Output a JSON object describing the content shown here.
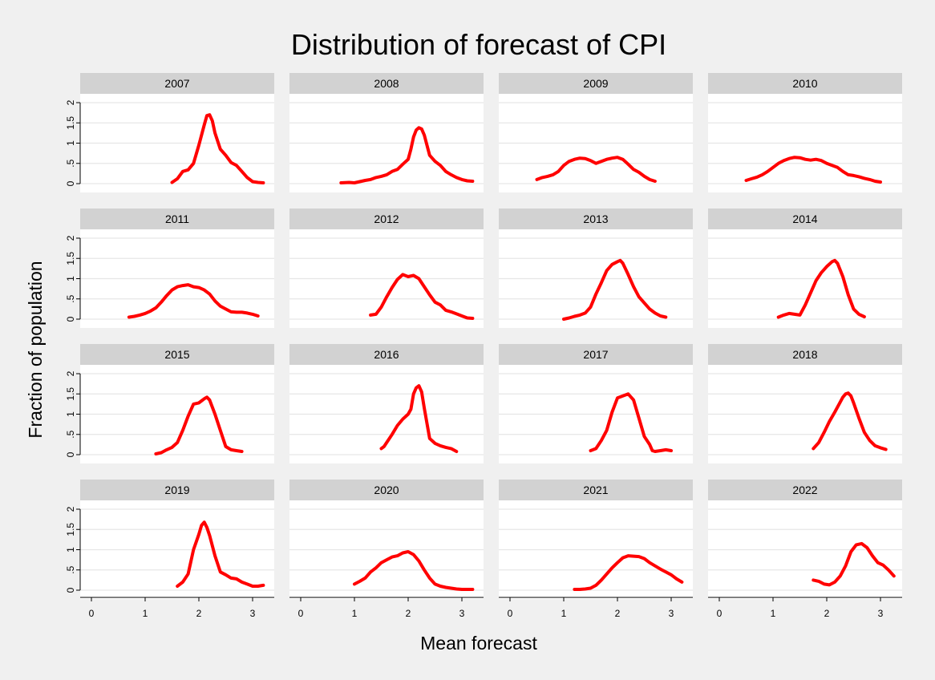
{
  "chart_data": {
    "type": "line",
    "title": "Distribution of forecast of CPI",
    "xlabel": "Mean forecast",
    "ylabel": "Fraction of population",
    "xlim": [
      0,
      3.3
    ],
    "ylim": [
      0,
      2
    ],
    "x_ticks": [
      0,
      1,
      2,
      3
    ],
    "x_tick_labels": [
      "0",
      "1",
      "2",
      "3"
    ],
    "y_ticks": [
      0,
      0.5,
      1,
      1.5,
      2
    ],
    "y_tick_labels": [
      "0",
      ".5",
      "1",
      "1.5",
      "2"
    ],
    "grid": true,
    "line_color": "#ff0000",
    "panels": [
      {
        "name": "2007",
        "x": [
          1.5,
          1.6,
          1.7,
          1.8,
          1.9,
          2.0,
          2.1,
          2.15,
          2.2,
          2.25,
          2.3,
          2.4,
          2.5,
          2.6,
          2.7,
          2.8,
          2.9,
          3.0,
          3.1,
          3.2
        ],
        "y": [
          0.03,
          0.12,
          0.3,
          0.34,
          0.5,
          0.95,
          1.45,
          1.68,
          1.7,
          1.55,
          1.25,
          0.85,
          0.7,
          0.52,
          0.45,
          0.3,
          0.15,
          0.05,
          0.03,
          0.02
        ]
      },
      {
        "name": "2008",
        "x": [
          0.75,
          0.9,
          1.0,
          1.1,
          1.2,
          1.3,
          1.4,
          1.5,
          1.6,
          1.7,
          1.8,
          1.9,
          2.0,
          2.05,
          2.1,
          2.15,
          2.2,
          2.25,
          2.3,
          2.4,
          2.5,
          2.6,
          2.7,
          2.8,
          2.9,
          3.0,
          3.1,
          3.2
        ],
        "y": [
          0.02,
          0.03,
          0.02,
          0.05,
          0.08,
          0.1,
          0.15,
          0.18,
          0.22,
          0.3,
          0.35,
          0.48,
          0.6,
          0.85,
          1.15,
          1.32,
          1.38,
          1.35,
          1.2,
          0.7,
          0.55,
          0.45,
          0.3,
          0.22,
          0.15,
          0.1,
          0.07,
          0.06
        ]
      },
      {
        "name": "2009",
        "x": [
          0.5,
          0.6,
          0.7,
          0.8,
          0.9,
          1.0,
          1.1,
          1.2,
          1.3,
          1.4,
          1.5,
          1.6,
          1.7,
          1.8,
          1.9,
          2.0,
          2.1,
          2.2,
          2.3,
          2.4,
          2.5,
          2.6,
          2.7
        ],
        "y": [
          0.1,
          0.15,
          0.18,
          0.22,
          0.3,
          0.45,
          0.55,
          0.6,
          0.63,
          0.62,
          0.57,
          0.5,
          0.55,
          0.6,
          0.63,
          0.65,
          0.6,
          0.48,
          0.35,
          0.28,
          0.18,
          0.1,
          0.06
        ]
      },
      {
        "name": "2010",
        "x": [
          0.5,
          0.6,
          0.7,
          0.8,
          0.9,
          1.0,
          1.1,
          1.2,
          1.3,
          1.4,
          1.5,
          1.6,
          1.7,
          1.8,
          1.9,
          2.0,
          2.1,
          2.2,
          2.3,
          2.4,
          2.5,
          2.6,
          2.7,
          2.8,
          2.9,
          3.0
        ],
        "y": [
          0.08,
          0.12,
          0.16,
          0.22,
          0.3,
          0.4,
          0.5,
          0.57,
          0.62,
          0.65,
          0.64,
          0.6,
          0.58,
          0.6,
          0.57,
          0.5,
          0.45,
          0.4,
          0.3,
          0.22,
          0.2,
          0.17,
          0.13,
          0.1,
          0.06,
          0.04
        ]
      },
      {
        "name": "2011",
        "x": [
          0.7,
          0.8,
          0.9,
          1.0,
          1.1,
          1.2,
          1.3,
          1.4,
          1.5,
          1.6,
          1.7,
          1.8,
          1.9,
          2.0,
          2.1,
          2.2,
          2.3,
          2.4,
          2.5,
          2.6,
          2.7,
          2.8,
          2.9,
          3.0,
          3.1
        ],
        "y": [
          0.05,
          0.07,
          0.1,
          0.14,
          0.2,
          0.28,
          0.42,
          0.58,
          0.72,
          0.8,
          0.83,
          0.85,
          0.8,
          0.78,
          0.72,
          0.62,
          0.45,
          0.32,
          0.25,
          0.18,
          0.17,
          0.17,
          0.15,
          0.12,
          0.08
        ]
      },
      {
        "name": "2012",
        "x": [
          1.3,
          1.4,
          1.5,
          1.6,
          1.7,
          1.8,
          1.9,
          2.0,
          2.1,
          2.2,
          2.3,
          2.4,
          2.5,
          2.6,
          2.7,
          2.8,
          2.9,
          3.0,
          3.1,
          3.2
        ],
        "y": [
          0.1,
          0.12,
          0.3,
          0.55,
          0.78,
          0.98,
          1.1,
          1.05,
          1.08,
          1.0,
          0.8,
          0.6,
          0.42,
          0.35,
          0.22,
          0.18,
          0.13,
          0.08,
          0.03,
          0.02
        ]
      },
      {
        "name": "2013",
        "x": [
          1.0,
          1.1,
          1.2,
          1.3,
          1.4,
          1.5,
          1.6,
          1.7,
          1.8,
          1.9,
          2.0,
          2.05,
          2.1,
          2.2,
          2.3,
          2.4,
          2.5,
          2.6,
          2.7,
          2.8,
          2.9
        ],
        "y": [
          0.0,
          0.03,
          0.07,
          0.1,
          0.15,
          0.3,
          0.62,
          0.9,
          1.2,
          1.35,
          1.42,
          1.45,
          1.38,
          1.1,
          0.8,
          0.55,
          0.4,
          0.25,
          0.15,
          0.08,
          0.05
        ]
      },
      {
        "name": "2014",
        "x": [
          1.1,
          1.2,
          1.3,
          1.4,
          1.5,
          1.6,
          1.7,
          1.8,
          1.9,
          2.0,
          2.1,
          2.15,
          2.2,
          2.3,
          2.4,
          2.5,
          2.6,
          2.7
        ],
        "y": [
          0.05,
          0.1,
          0.14,
          0.12,
          0.1,
          0.35,
          0.65,
          0.95,
          1.15,
          1.3,
          1.42,
          1.45,
          1.38,
          1.05,
          0.6,
          0.25,
          0.12,
          0.06
        ]
      },
      {
        "name": "2015",
        "x": [
          1.2,
          1.3,
          1.4,
          1.5,
          1.6,
          1.7,
          1.8,
          1.9,
          2.0,
          2.1,
          2.15,
          2.2,
          2.3,
          2.4,
          2.5,
          2.6,
          2.7,
          2.8
        ],
        "y": [
          0.02,
          0.05,
          0.12,
          0.18,
          0.3,
          0.6,
          0.95,
          1.25,
          1.28,
          1.38,
          1.42,
          1.35,
          1.0,
          0.6,
          0.2,
          0.12,
          0.1,
          0.08
        ]
      },
      {
        "name": "2016",
        "x": [
          1.5,
          1.55,
          1.6,
          1.7,
          1.8,
          1.9,
          2.0,
          2.05,
          2.1,
          2.15,
          2.2,
          2.25,
          2.3,
          2.4,
          2.5,
          2.6,
          2.7,
          2.8,
          2.9
        ],
        "y": [
          0.15,
          0.2,
          0.3,
          0.5,
          0.72,
          0.88,
          1.0,
          1.12,
          1.5,
          1.65,
          1.7,
          1.55,
          1.15,
          0.4,
          0.28,
          0.22,
          0.18,
          0.15,
          0.08
        ]
      },
      {
        "name": "2017",
        "x": [
          1.5,
          1.6,
          1.7,
          1.8,
          1.9,
          2.0,
          2.1,
          2.2,
          2.3,
          2.4,
          2.5,
          2.6,
          2.65,
          2.7,
          2.8,
          2.9,
          3.0
        ],
        "y": [
          0.1,
          0.15,
          0.35,
          0.6,
          1.05,
          1.4,
          1.45,
          1.5,
          1.35,
          0.9,
          0.45,
          0.25,
          0.1,
          0.08,
          0.1,
          0.12,
          0.1
        ]
      },
      {
        "name": "2018",
        "x": [
          1.75,
          1.85,
          1.95,
          2.05,
          2.15,
          2.25,
          2.3,
          2.35,
          2.4,
          2.45,
          2.5,
          2.6,
          2.7,
          2.8,
          2.9,
          3.0,
          3.1
        ],
        "y": [
          0.15,
          0.3,
          0.55,
          0.82,
          1.05,
          1.3,
          1.42,
          1.5,
          1.52,
          1.45,
          1.28,
          0.9,
          0.55,
          0.35,
          0.22,
          0.17,
          0.13
        ]
      },
      {
        "name": "2019",
        "x": [
          1.6,
          1.7,
          1.8,
          1.9,
          2.0,
          2.05,
          2.1,
          2.15,
          2.2,
          2.3,
          2.4,
          2.5,
          2.6,
          2.7,
          2.8,
          2.9,
          3.0,
          3.1,
          3.2
        ],
        "y": [
          0.1,
          0.2,
          0.4,
          1.0,
          1.38,
          1.6,
          1.68,
          1.55,
          1.35,
          0.85,
          0.45,
          0.38,
          0.3,
          0.28,
          0.2,
          0.15,
          0.1,
          0.1,
          0.12
        ]
      },
      {
        "name": "2020",
        "x": [
          1.0,
          1.1,
          1.2,
          1.3,
          1.4,
          1.5,
          1.6,
          1.7,
          1.8,
          1.9,
          2.0,
          2.1,
          2.2,
          2.3,
          2.4,
          2.5,
          2.6,
          2.7,
          2.8,
          2.9,
          3.0,
          3.1,
          3.2
        ],
        "y": [
          0.15,
          0.22,
          0.3,
          0.45,
          0.55,
          0.68,
          0.75,
          0.82,
          0.85,
          0.92,
          0.95,
          0.88,
          0.72,
          0.5,
          0.3,
          0.15,
          0.1,
          0.07,
          0.05,
          0.03,
          0.02,
          0.02,
          0.02
        ]
      },
      {
        "name": "2021",
        "x": [
          1.2,
          1.3,
          1.4,
          1.5,
          1.6,
          1.7,
          1.8,
          1.9,
          2.0,
          2.1,
          2.2,
          2.3,
          2.4,
          2.5,
          2.6,
          2.7,
          2.8,
          2.9,
          3.0,
          3.1,
          3.2
        ],
        "y": [
          0.02,
          0.02,
          0.03,
          0.05,
          0.12,
          0.25,
          0.4,
          0.55,
          0.68,
          0.8,
          0.85,
          0.84,
          0.83,
          0.78,
          0.68,
          0.6,
          0.52,
          0.45,
          0.38,
          0.28,
          0.2
        ]
      },
      {
        "name": "2022",
        "x": [
          1.75,
          1.85,
          1.95,
          2.05,
          2.15,
          2.25,
          2.35,
          2.45,
          2.55,
          2.65,
          2.75,
          2.85,
          2.95,
          3.05,
          3.15,
          3.25
        ],
        "y": [
          0.25,
          0.22,
          0.15,
          0.13,
          0.2,
          0.35,
          0.6,
          0.95,
          1.12,
          1.15,
          1.05,
          0.85,
          0.68,
          0.62,
          0.5,
          0.35
        ]
      }
    ]
  }
}
